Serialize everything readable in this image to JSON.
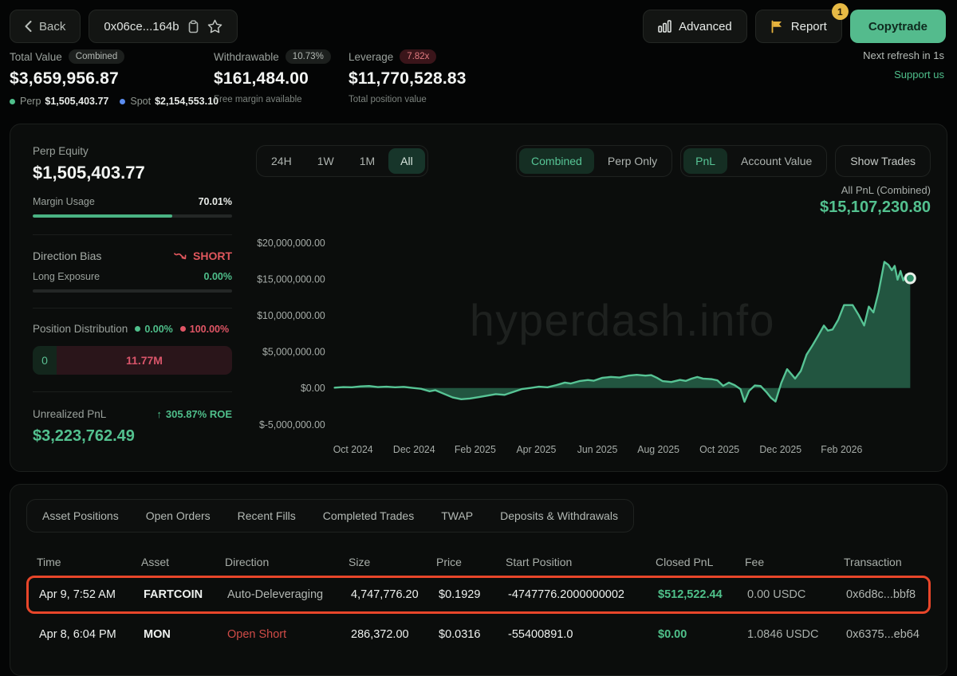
{
  "topbar": {
    "back_label": "Back",
    "address": "0x06ce...164b",
    "advanced_label": "Advanced",
    "report_label": "Report",
    "report_badge": "1",
    "copytrade_label": "Copytrade"
  },
  "stats": {
    "total": {
      "label": "Total Value",
      "badge": "Combined",
      "value": "$3,659,956.87",
      "perp_label": "Perp",
      "perp_value": "$1,505,403.77",
      "spot_label": "Spot",
      "spot_value": "$2,154,553.10",
      "perp_dot_color": "#4fbf8b",
      "spot_dot_color": "#5b8def"
    },
    "withdrawable": {
      "label": "Withdrawable",
      "badge": "10.73%",
      "value": "$161,484.00",
      "sub": "Free margin available"
    },
    "leverage": {
      "label": "Leverage",
      "badge": "7.82x",
      "value": "$11,770,528.83",
      "sub": "Total position value"
    },
    "refresh": "Next refresh in 1s",
    "support": "Support us"
  },
  "sidebar": {
    "perp_equity_label": "Perp Equity",
    "perp_equity_value": "$1,505,403.77",
    "margin_usage_label": "Margin Usage",
    "margin_usage_value": "70.01%",
    "margin_usage_pct": 70.01,
    "direction_bias_label": "Direction Bias",
    "direction_bias_value": "SHORT",
    "long_exposure_label": "Long Exposure",
    "long_exposure_value": "0.00%",
    "long_exposure_pct": 0,
    "position_distribution_label": "Position Distribution",
    "long_pct": "0.00%",
    "short_pct": "100.00%",
    "dist_long_value": "0",
    "dist_short_value": "11.77M",
    "unrealized_label": "Unrealized PnL",
    "roe_value": "305.87% ROE",
    "unrealized_value": "$3,223,762.49"
  },
  "chart": {
    "range_tabs": [
      "24H",
      "1W",
      "1M",
      "All"
    ],
    "range_active": "All",
    "mode_tabs": [
      "Combined",
      "Perp Only"
    ],
    "mode_active": "Combined",
    "metric_tabs": [
      "PnL",
      "Account Value"
    ],
    "metric_active": "PnL",
    "show_trades_label": "Show Trades"
  },
  "chart_data": {
    "type": "area",
    "title": "All PnL (Combined)",
    "current_value": "$15,107,230.80",
    "watermark": "hyperdash.info",
    "line_color": "#57c495",
    "fill_color": "#296а50",
    "fill_color_hex": "#296a50",
    "ylim_millions": [
      -6.4,
      21.8
    ],
    "yticks": [
      {
        "label": "$20,000,000.00",
        "value_millions": 20
      },
      {
        "label": "$15,000,000.00",
        "value_millions": 15
      },
      {
        "label": "$10,000,000.00",
        "value_millions": 10
      },
      {
        "label": "$5,000,000.00",
        "value_millions": 5
      },
      {
        "label": "$0.00",
        "value_millions": 0
      },
      {
        "label": "$-5,000,000.00",
        "value_millions": -5
      }
    ],
    "xticks": [
      "Oct 2024",
      "Dec 2024",
      "Feb 2025",
      "Apr 2025",
      "Jun 2025",
      "Aug 2025",
      "Oct 2025",
      "Dec 2025",
      "Feb 2026"
    ],
    "xtick_start_frac": 0.032,
    "xtick_step_frac": 0.1061,
    "units": "USD millions",
    "series": [
      {
        "name": "All PnL (Combined)",
        "points_millions": [
          [
            0.0,
            0.05
          ],
          [
            0.015,
            0.12
          ],
          [
            0.03,
            0.1
          ],
          [
            0.045,
            0.22
          ],
          [
            0.06,
            0.28
          ],
          [
            0.075,
            0.12
          ],
          [
            0.09,
            0.18
          ],
          [
            0.105,
            0.1
          ],
          [
            0.12,
            0.16
          ],
          [
            0.135,
            0.02
          ],
          [
            0.15,
            -0.1
          ],
          [
            0.165,
            -0.45
          ],
          [
            0.175,
            -0.3
          ],
          [
            0.19,
            -0.8
          ],
          [
            0.205,
            -1.3
          ],
          [
            0.22,
            -1.55
          ],
          [
            0.235,
            -1.45
          ],
          [
            0.25,
            -1.25
          ],
          [
            0.265,
            -1.05
          ],
          [
            0.28,
            -0.85
          ],
          [
            0.295,
            -0.95
          ],
          [
            0.31,
            -0.55
          ],
          [
            0.325,
            -0.15
          ],
          [
            0.34,
            0.0
          ],
          [
            0.355,
            0.18
          ],
          [
            0.37,
            0.1
          ],
          [
            0.385,
            0.4
          ],
          [
            0.4,
            0.75
          ],
          [
            0.41,
            0.62
          ],
          [
            0.425,
            0.95
          ],
          [
            0.44,
            1.1
          ],
          [
            0.45,
            1.0
          ],
          [
            0.465,
            1.4
          ],
          [
            0.48,
            1.52
          ],
          [
            0.495,
            1.45
          ],
          [
            0.51,
            1.7
          ],
          [
            0.525,
            1.82
          ],
          [
            0.54,
            1.7
          ],
          [
            0.55,
            1.78
          ],
          [
            0.56,
            1.4
          ],
          [
            0.57,
            0.95
          ],
          [
            0.585,
            0.82
          ],
          [
            0.6,
            1.12
          ],
          [
            0.61,
            0.98
          ],
          [
            0.62,
            1.28
          ],
          [
            0.63,
            1.52
          ],
          [
            0.64,
            1.3
          ],
          [
            0.655,
            1.22
          ],
          [
            0.665,
            1.05
          ],
          [
            0.675,
            0.3
          ],
          [
            0.685,
            0.75
          ],
          [
            0.695,
            0.4
          ],
          [
            0.705,
            -0.15
          ],
          [
            0.712,
            -1.9
          ],
          [
            0.72,
            -0.4
          ],
          [
            0.73,
            0.35
          ],
          [
            0.74,
            0.28
          ],
          [
            0.75,
            -0.55
          ],
          [
            0.758,
            -1.35
          ],
          [
            0.766,
            -1.85
          ],
          [
            0.776,
            0.7
          ],
          [
            0.786,
            2.6
          ],
          [
            0.793,
            1.95
          ],
          [
            0.8,
            1.3
          ],
          [
            0.81,
            2.35
          ],
          [
            0.82,
            4.6
          ],
          [
            0.83,
            5.85
          ],
          [
            0.84,
            7.2
          ],
          [
            0.85,
            8.6
          ],
          [
            0.857,
            7.9
          ],
          [
            0.865,
            8.05
          ],
          [
            0.875,
            9.4
          ],
          [
            0.885,
            11.4
          ],
          [
            0.9,
            11.4
          ],
          [
            0.91,
            10.1
          ],
          [
            0.92,
            8.6
          ],
          [
            0.928,
            11.2
          ],
          [
            0.936,
            10.4
          ],
          [
            0.945,
            13.2
          ],
          [
            0.955,
            17.35
          ],
          [
            0.962,
            16.95
          ],
          [
            0.968,
            16.2
          ],
          [
            0.973,
            16.8
          ],
          [
            0.978,
            14.9
          ],
          [
            0.983,
            16.1
          ],
          [
            0.988,
            14.8
          ],
          [
            0.993,
            15.6
          ],
          [
            1.0,
            15.1
          ]
        ]
      }
    ]
  },
  "table": {
    "tabs": [
      "Asset Positions",
      "Open Orders",
      "Recent Fills",
      "Completed Trades",
      "TWAP",
      "Deposits & Withdrawals"
    ],
    "active_tab": "Recent Fills",
    "columns": [
      "Time",
      "Asset",
      "Direction",
      "Size",
      "Price",
      "Start Position",
      "Closed PnL",
      "Fee",
      "Transaction"
    ],
    "rows": [
      {
        "time": "Apr 9, 7:52 AM",
        "asset": "FARTCOIN",
        "direction": "Auto-Deleveraging",
        "direction_style": "muted",
        "size": "4,747,776.20",
        "price": "$0.1929",
        "start_position": "-4747776.2000000002",
        "closed_pnl": "$512,522.44",
        "fee": "0.00 USDC",
        "tx": "0x6d8c...bbf8",
        "highlighted": true
      },
      {
        "time": "Apr 8, 6:04 PM",
        "asset": "MON",
        "direction": "Open Short",
        "direction_style": "red",
        "size": "286,372.00",
        "price": "$0.0316",
        "start_position": "-55400891.0",
        "closed_pnl": "$0.00",
        "fee": "1.0846 USDC",
        "tx": "0x6375...eb64",
        "highlighted": false
      }
    ],
    "highlight_color": "#e8462a"
  }
}
